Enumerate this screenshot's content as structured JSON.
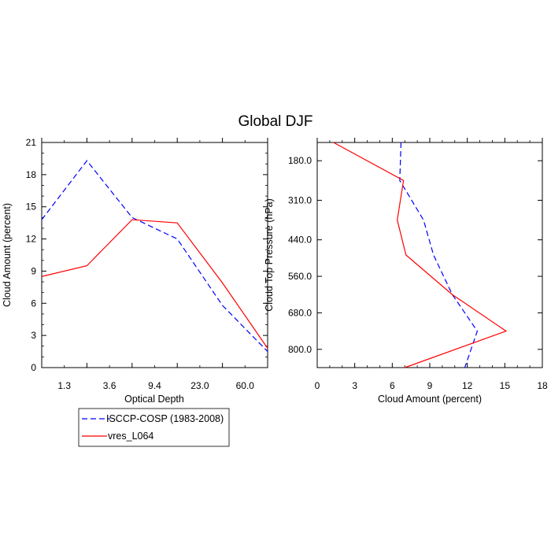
{
  "title": "Global DJF",
  "chart_data": [
    {
      "type": "line",
      "xlabel": "Optical Depth",
      "ylabel": "Cloud Amount (percent)",
      "categories": [
        "1.3",
        "3.6",
        "9.4",
        "23.0",
        "60.0"
      ],
      "x": [
        0,
        1,
        2,
        3,
        4,
        5
      ],
      "xlim": [
        0,
        5
      ],
      "ylim": [
        0,
        21
      ],
      "yticks": [
        "0",
        "3",
        "6",
        "9",
        "12",
        "15",
        "18",
        "21"
      ],
      "series": [
        {
          "name": "ISCCP-COSP (1983-2008)",
          "color": "#0000ff",
          "dash": "dashed",
          "values": [
            13.8,
            19.3,
            14.0,
            12.0,
            5.8,
            1.5
          ]
        },
        {
          "name": "vres_L064",
          "color": "#ff0000",
          "dash": "solid",
          "values": [
            8.5,
            9.5,
            13.8,
            13.5,
            7.9,
            1.8
          ]
        }
      ]
    },
    {
      "type": "line",
      "xlabel": "Cloud Amount (percent)",
      "ylabel": "Cloud Top Pressure (hPa)",
      "xlim": [
        0,
        18
      ],
      "xticks": [
        "0",
        "3",
        "6",
        "9",
        "12",
        "15",
        "18"
      ],
      "yticks": [
        "180.0",
        "310.0",
        "440.0",
        "560.0",
        "680.0",
        "800.0"
      ],
      "yticks_values": [
        180,
        310,
        440,
        560,
        680,
        800
      ],
      "ylim_top_to_bottom": [
        120,
        860
      ],
      "series": [
        {
          "name": "ISCCP-COSP (1983-2008)",
          "color": "#0000ff",
          "dash": "dashed",
          "pressure": [
            120,
            245,
            375,
            490,
            620,
            740,
            860
          ],
          "values": [
            6.7,
            6.6,
            8.5,
            9.3,
            10.8,
            12.8,
            11.8
          ]
        },
        {
          "name": "vres_L064",
          "color": "#ff0000",
          "dash": "solid",
          "pressure": [
            120,
            245,
            375,
            490,
            620,
            740,
            860
          ],
          "values": [
            1.3,
            6.9,
            6.4,
            7.1,
            10.8,
            15.1,
            7.0
          ]
        }
      ]
    }
  ],
  "legend": {
    "entries": [
      "ISCCP-COSP (1983-2008)",
      "vres_L064"
    ]
  }
}
